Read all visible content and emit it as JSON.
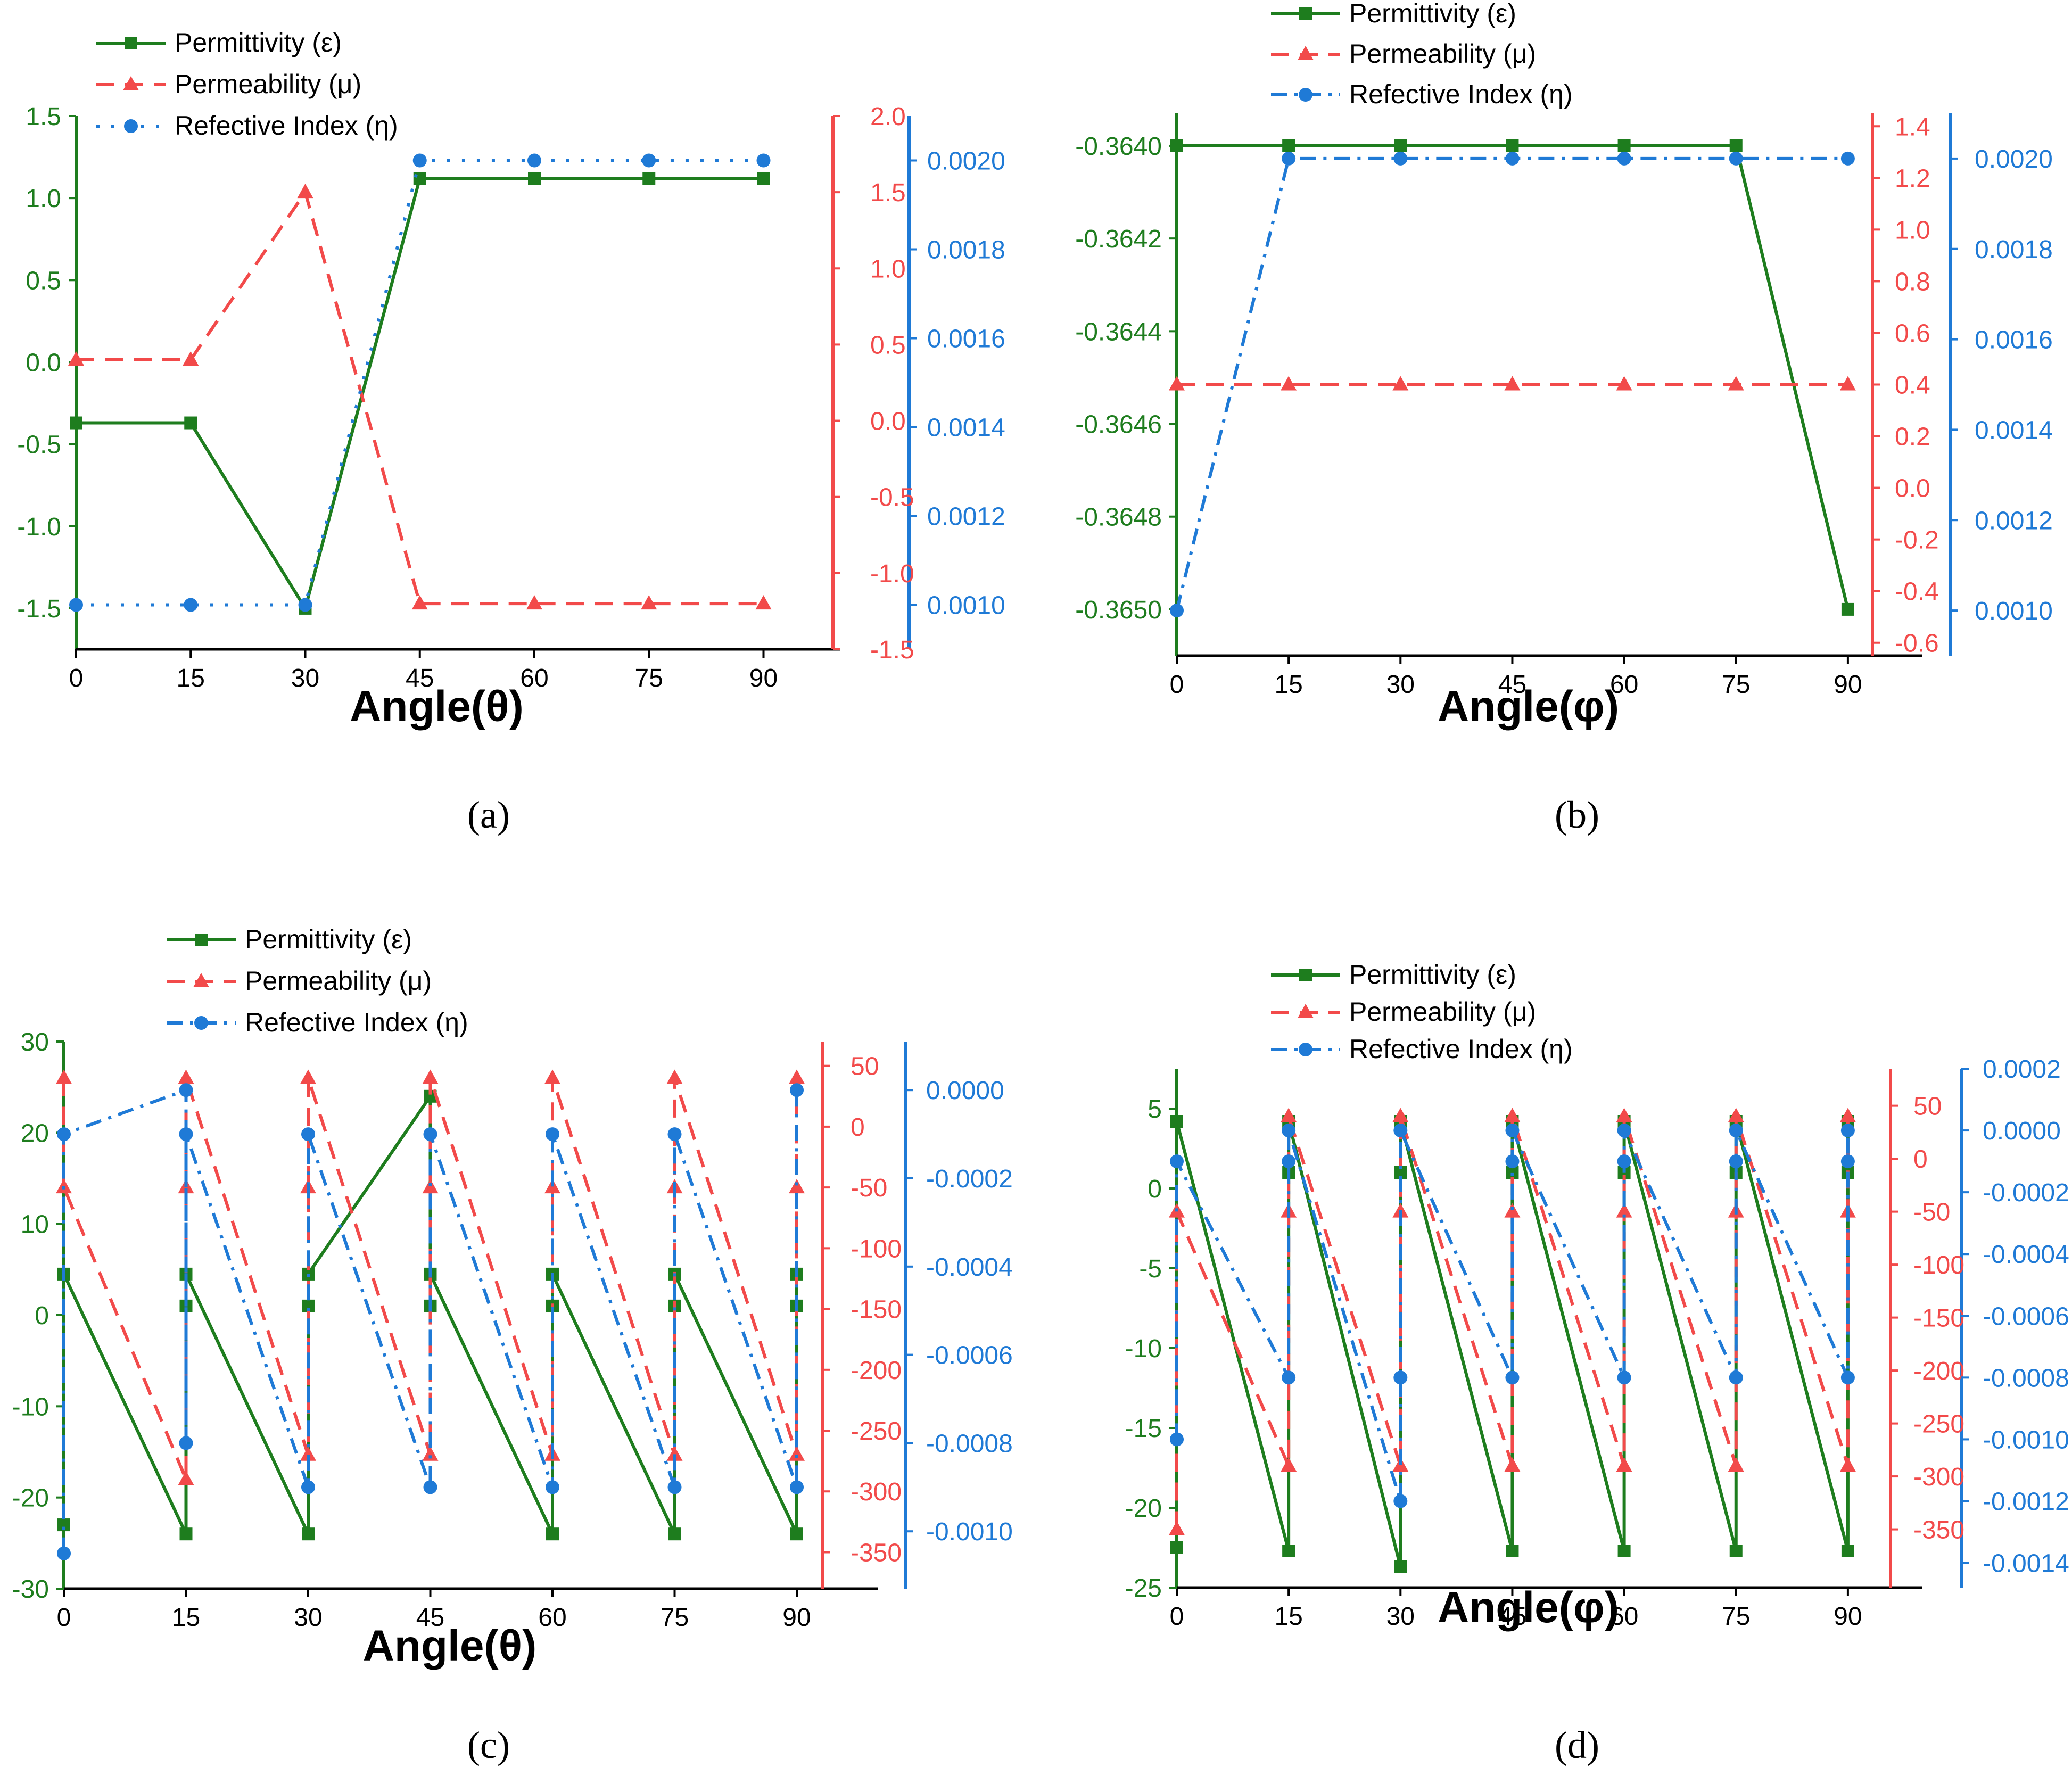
{
  "colors": {
    "permittivity": "#1e7d1e",
    "permeability": "#f24a4a",
    "refractive": "#1f7ad6"
  },
  "chart_data": [
    {
      "type": "line",
      "panel": "a",
      "caption_letter": "a",
      "xlabel": "Angle(θ)",
      "x": [
        0,
        15,
        30,
        45,
        60,
        75,
        90
      ],
      "x_ticks": [
        "0",
        "15",
        "30",
        "45",
        "60",
        "75",
        "90"
      ],
      "xlim": [
        0,
        100
      ],
      "legend": [
        "Permittivity (ε)",
        "Permeability (μ)",
        "Refective Index (η)"
      ],
      "axes": [
        {
          "name": "left",
          "color": "permittivity",
          "ylim": [
            -1.75,
            1.5
          ],
          "ticks": [
            "1.5",
            "1.0",
            "0.5",
            "0.0",
            "-0.5",
            "-1.0",
            "-1.5"
          ],
          "tick_values": [
            1.5,
            1.0,
            0.5,
            0.0,
            -0.5,
            -1.0,
            -1.5
          ]
        },
        {
          "name": "right1",
          "color": "permeability",
          "ylim": [
            -1.5,
            2.0
          ],
          "ticks": [
            "2.0",
            "1.5",
            "1.0",
            "0.5",
            "0.0",
            "-0.5",
            "-1.0",
            "-1.5"
          ],
          "tick_values": [
            2.0,
            1.5,
            1.0,
            0.5,
            0.0,
            -0.5,
            -1.0,
            -1.5
          ]
        },
        {
          "name": "right2",
          "color": "refractive",
          "ylim": [
            0.0009,
            0.0021
          ],
          "ticks": [
            "0.0020",
            "0.0018",
            "0.0016",
            "0.0014",
            "0.0012",
            "0.0010"
          ],
          "tick_values": [
            0.002,
            0.0018,
            0.0016,
            0.0014,
            0.0012,
            0.001
          ]
        }
      ],
      "series": [
        {
          "name": "Permittivity (ε)",
          "axis": "left",
          "color": "permittivity",
          "dash": "solid",
          "marker": "square",
          "x": [
            0,
            15,
            30,
            45,
            60,
            75,
            90
          ],
          "y": [
            -0.37,
            -0.37,
            -1.5,
            1.12,
            1.12,
            1.12,
            1.12
          ]
        },
        {
          "name": "Permeability (μ)",
          "axis": "right1",
          "color": "permeability",
          "dash": "dash",
          "marker": "triangle",
          "x": [
            0,
            15,
            30,
            45,
            60,
            75,
            90
          ],
          "y": [
            0.4,
            0.4,
            1.5,
            -1.2,
            -1.2,
            -1.2,
            -1.2
          ]
        },
        {
          "name": "Refective Index (η)",
          "axis": "right2",
          "color": "refractive",
          "dash": "dot",
          "marker": "circle",
          "x": [
            0,
            15,
            30,
            45,
            60,
            75,
            90
          ],
          "y": [
            0.001,
            0.001,
            0.001,
            0.002,
            0.002,
            0.002,
            0.002
          ]
        }
      ]
    },
    {
      "type": "line",
      "panel": "b",
      "caption_letter": "b",
      "xlabel": "Angle(φ)",
      "x": [
        0,
        15,
        30,
        45,
        60,
        75,
        90
      ],
      "x_ticks": [
        "0",
        "15",
        "30",
        "45",
        "60",
        "75",
        "90"
      ],
      "xlim": [
        0,
        100
      ],
      "legend": [
        "Permittivity (ε)",
        "Permeability (μ)",
        "Refective Index (η)"
      ],
      "axes": [
        {
          "name": "left",
          "color": "permittivity",
          "ylim": [
            -0.3651,
            -0.36393
          ],
          "ticks": [
            "-0.3640",
            "-0.3642",
            "-0.3644",
            "-0.3646",
            "-0.3648",
            "-0.3650"
          ],
          "tick_values": [
            -0.364,
            -0.3642,
            -0.3644,
            -0.3646,
            -0.3648,
            -0.365
          ]
        },
        {
          "name": "right1",
          "color": "permeability",
          "ylim": [
            -0.65,
            1.45
          ],
          "ticks": [
            "1.4",
            "1.2",
            "1.0",
            "0.8",
            "0.6",
            "0.4",
            "0.2",
            "0.0",
            "-0.2",
            "-0.4",
            "-0.6"
          ],
          "tick_values": [
            1.4,
            1.2,
            1.0,
            0.8,
            0.6,
            0.4,
            0.2,
            0.0,
            -0.2,
            -0.4,
            -0.6
          ]
        },
        {
          "name": "right2",
          "color": "refractive",
          "ylim": [
            0.0009,
            0.0021
          ],
          "ticks": [
            "0.0020",
            "0.0018",
            "0.0016",
            "0.0014",
            "0.0012",
            "0.0010"
          ],
          "tick_values": [
            0.002,
            0.0018,
            0.0016,
            0.0014,
            0.0012,
            0.001
          ]
        }
      ],
      "series": [
        {
          "name": "Permittivity (ε)",
          "axis": "left",
          "color": "permittivity",
          "dash": "solid",
          "marker": "square",
          "x": [
            0,
            15,
            30,
            45,
            60,
            75,
            90
          ],
          "y": [
            -0.364,
            -0.364,
            -0.364,
            -0.364,
            -0.364,
            -0.364,
            -0.365
          ]
        },
        {
          "name": "Permeability (μ)",
          "axis": "right1",
          "color": "permeability",
          "dash": "dash",
          "marker": "triangle",
          "x": [
            0,
            15,
            30,
            45,
            60,
            75,
            90
          ],
          "y": [
            0.4,
            0.4,
            0.4,
            0.4,
            0.4,
            0.4,
            0.4
          ]
        },
        {
          "name": "Refective Index (η)",
          "axis": "right2",
          "color": "refractive",
          "dash": "dashdot",
          "marker": "circle",
          "x": [
            0,
            15,
            30,
            45,
            60,
            75,
            90
          ],
          "y": [
            0.001,
            0.002,
            0.002,
            0.002,
            0.002,
            0.002,
            0.002
          ]
        }
      ]
    },
    {
      "type": "line",
      "panel": "c",
      "caption_letter": "c",
      "xlabel": "Angle(θ)",
      "x": [
        0,
        15,
        30,
        45,
        60,
        75,
        90
      ],
      "x_ticks": [
        "0",
        "15",
        "30",
        "45",
        "60",
        "75",
        "90"
      ],
      "xlim": [
        0,
        100
      ],
      "legend": [
        "Permittivity (ε)",
        "Permeability (μ)",
        "Refective Index (η)"
      ],
      "axes": [
        {
          "name": "left",
          "color": "permittivity",
          "ylim": [
            -30,
            30
          ],
          "ticks": [
            "30",
            "20",
            "10",
            "0",
            "-10",
            "-20",
            "-30"
          ],
          "tick_values": [
            30,
            20,
            10,
            0,
            -10,
            -20,
            -30
          ]
        },
        {
          "name": "right1",
          "color": "permeability",
          "ylim": [
            -380,
            70
          ],
          "ticks": [
            "50",
            "0",
            "-50",
            "-100",
            "-150",
            "-200",
            "-250",
            "-300",
            "-350"
          ],
          "tick_values": [
            50,
            0,
            -50,
            -100,
            -150,
            -200,
            -250,
            -300,
            -350
          ]
        },
        {
          "name": "right2",
          "color": "refractive",
          "ylim": [
            -0.00113,
            0.00011
          ],
          "ticks": [
            "0.0000",
            "-0.0002",
            "-0.0004",
            "-0.0006",
            "-0.0008",
            "-0.0010"
          ],
          "tick_values": [
            0.0,
            -0.0002,
            -0.0004,
            -0.0006,
            -0.0008,
            -0.001
          ]
        }
      ],
      "series": [
        {
          "name": "Permittivity (ε)",
          "axis": "left",
          "color": "permittivity",
          "dash": "solid",
          "marker": "square",
          "x": [
            0,
            0,
            15,
            15,
            15,
            30,
            30,
            30,
            45,
            45,
            45,
            60,
            60,
            60,
            75,
            75,
            75,
            90,
            90,
            90
          ],
          "y": [
            -23,
            4.5,
            -24,
            1,
            4.5,
            -24,
            1,
            4.5,
            24,
            1,
            4.5,
            -24,
            1,
            4.5,
            -24,
            1,
            4.5,
            -24,
            1,
            4.5
          ]
        },
        {
          "name": "Permeability (μ)",
          "axis": "right1",
          "color": "permeability",
          "dash": "dash",
          "marker": "triangle",
          "x": [
            0,
            0,
            15,
            15,
            15,
            30,
            30,
            30,
            45,
            45,
            45,
            60,
            60,
            60,
            75,
            75,
            75,
            90,
            90,
            90
          ],
          "y": [
            40,
            -50,
            -290,
            -50,
            40,
            -270,
            -50,
            40,
            -270,
            -50,
            40,
            -270,
            -50,
            40,
            -270,
            -50,
            40,
            -270,
            -50,
            40
          ]
        },
        {
          "name": "Refective Index (η)",
          "axis": "right2",
          "color": "refractive",
          "dash": "dashdot",
          "marker": "circle",
          "x": [
            0,
            0,
            15,
            15,
            15,
            30,
            30,
            45,
            45,
            60,
            60,
            75,
            75,
            90,
            90
          ],
          "y": [
            -0.00105,
            -0.0001,
            0.0,
            -0.0008,
            -0.0001,
            -0.0009,
            -0.0001,
            -0.0009,
            -0.0001,
            -0.0009,
            -0.0001,
            -0.0009,
            -0.0001,
            -0.0009,
            0.0
          ]
        }
      ]
    },
    {
      "type": "line",
      "panel": "d",
      "caption_letter": "d",
      "xlabel": "Angle(φ)",
      "x": [
        0,
        15,
        30,
        45,
        60,
        75,
        90
      ],
      "x_ticks": [
        "0",
        "15",
        "30",
        "45",
        "60",
        "75",
        "90"
      ],
      "xlim": [
        0,
        100
      ],
      "legend": [
        "Permittivity (ε)",
        "Permeability (μ)",
        "Refective Index (η)"
      ],
      "axes": [
        {
          "name": "left",
          "color": "permittivity",
          "ylim": [
            -25,
            7.5
          ],
          "ticks": [
            "5",
            "0",
            "-5",
            "-10",
            "-15",
            "-20",
            "-25"
          ],
          "tick_values": [
            5,
            0,
            -5,
            -10,
            -15,
            -20,
            -25
          ]
        },
        {
          "name": "right1",
          "color": "permeability",
          "ylim": [
            -405,
            85
          ],
          "ticks": [
            "50",
            "0",
            "-50",
            "-100",
            "-150",
            "-200",
            "-250",
            "-300",
            "-350"
          ],
          "tick_values": [
            50,
            0,
            -50,
            -100,
            -150,
            -200,
            -250,
            -300,
            -350
          ]
        },
        {
          "name": "right2",
          "color": "refractive",
          "ylim": [
            -0.00148,
            0.0002
          ],
          "ticks": [
            "0.0002",
            "0.0000",
            "-0.0002",
            "-0.0004",
            "-0.0006",
            "-0.0008",
            "-0.0010",
            "-0.0012",
            "-0.0014"
          ],
          "tick_values": [
            0.0002,
            0.0,
            -0.0002,
            -0.0004,
            -0.0006,
            -0.0008,
            -0.001,
            -0.0012,
            -0.0014
          ]
        }
      ],
      "series": [
        {
          "name": "Permittivity (ε)",
          "axis": "left",
          "color": "permittivity",
          "dash": "solid",
          "marker": "square",
          "x": [
            0,
            0,
            15,
            15,
            15,
            30,
            30,
            30,
            45,
            45,
            45,
            60,
            60,
            60,
            75,
            75,
            75,
            90,
            90,
            90
          ],
          "y": [
            -22.5,
            4.2,
            -22.7,
            1,
            4.2,
            -23.7,
            1,
            4.2,
            -22.7,
            1,
            4.2,
            -22.7,
            1,
            4.2,
            -22.7,
            1,
            4.2,
            -22.7,
            1,
            4.2
          ]
        },
        {
          "name": "Permeability (μ)",
          "axis": "right1",
          "color": "permeability",
          "dash": "dash",
          "marker": "triangle",
          "x": [
            0,
            0,
            15,
            15,
            15,
            30,
            30,
            30,
            45,
            45,
            45,
            60,
            60,
            60,
            75,
            75,
            75,
            90,
            90,
            90
          ],
          "y": [
            -350,
            -50,
            -290,
            -50,
            40,
            -290,
            -50,
            40,
            -290,
            -50,
            40,
            -290,
            -50,
            40,
            -290,
            -50,
            40,
            -290,
            -50,
            40
          ]
        },
        {
          "name": "Refective Index (η)",
          "axis": "right2",
          "color": "refractive",
          "dash": "dashdot",
          "marker": "circle",
          "x": [
            0,
            0,
            15,
            15,
            15,
            30,
            30,
            30,
            45,
            45,
            45,
            60,
            60,
            60,
            75,
            75,
            75,
            90,
            90,
            90
          ],
          "y": [
            -0.001,
            -0.0001,
            -0.0008,
            -0.0001,
            0.0,
            -0.0012,
            -0.0008,
            0.0,
            -0.0008,
            -0.0001,
            0.0,
            -0.0008,
            -0.0001,
            0.0,
            -0.0008,
            -0.0001,
            0.0,
            -0.0008,
            -0.0001,
            0.0
          ]
        }
      ]
    }
  ]
}
